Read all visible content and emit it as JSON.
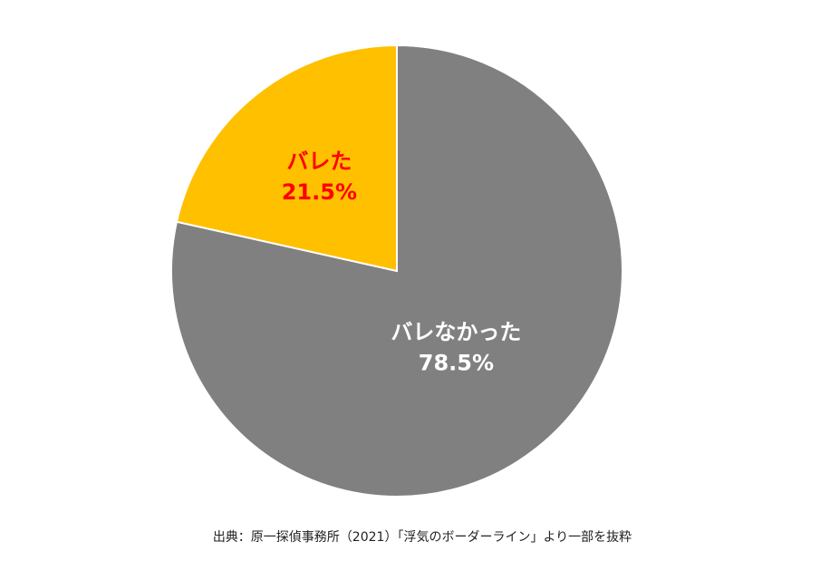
{
  "chart_data": {
    "type": "pie",
    "slices": [
      {
        "label": "バレなかった",
        "value": 78.5,
        "value_label": "78.5%",
        "color": "#808080",
        "text_color": "#ffffff"
      },
      {
        "label": "バレた",
        "value": 21.5,
        "value_label": "21.5%",
        "color": "#FFC000",
        "text_color": "#FF0000"
      }
    ],
    "start_angle_deg": 0,
    "direction": "clockwise",
    "slice_border_color": "#ffffff"
  },
  "source_note": "出典：原一探偵事務所（2021）「浮気のボーダーライン」より一部を抜粋"
}
